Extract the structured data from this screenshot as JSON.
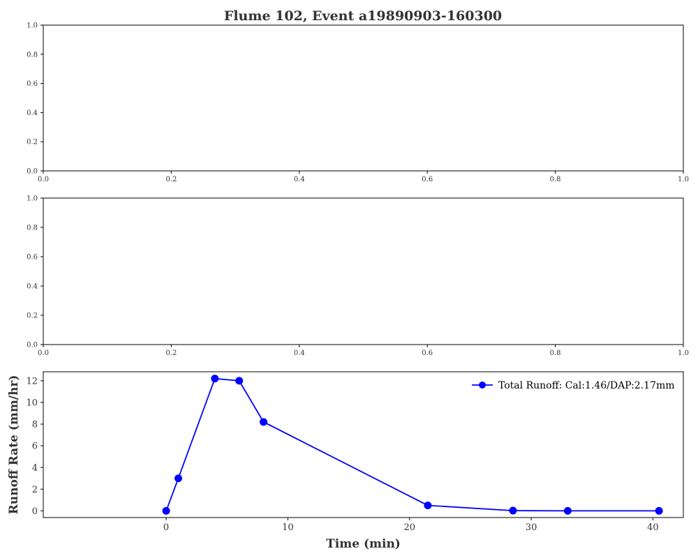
{
  "title": "Flume 102, Event a19890903-160300",
  "chart_data": [
    {
      "type": "line",
      "title": "",
      "xlabel": "",
      "ylabel": "",
      "xlim": [
        0,
        1
      ],
      "ylim": [
        0,
        1
      ],
      "xticks": [
        "0.0",
        "0.2",
        "0.4",
        "0.6",
        "0.8",
        "1.0"
      ],
      "yticks": [
        "0.0",
        "0.2",
        "0.4",
        "0.6",
        "0.8",
        "1.0"
      ],
      "series": []
    },
    {
      "type": "line",
      "title": "",
      "xlabel": "",
      "ylabel": "",
      "xlim": [
        0,
        1
      ],
      "ylim": [
        0,
        1
      ],
      "xticks": [
        "0.0",
        "0.2",
        "0.4",
        "0.6",
        "0.8",
        "1.0"
      ],
      "yticks": [
        "0.0",
        "0.2",
        "0.4",
        "0.6",
        "0.8",
        "1.0"
      ],
      "series": []
    },
    {
      "type": "line",
      "title": "",
      "xlabel": "Time (min)",
      "ylabel": "Runoff Rate (mm/hr)",
      "xlim": [
        -10.1,
        42.5
      ],
      "ylim": [
        -0.62,
        12.83
      ],
      "xticks": [
        "0",
        "10",
        "20",
        "30",
        "40"
      ],
      "yticks": [
        "0",
        "2",
        "4",
        "6",
        "8",
        "10",
        "12"
      ],
      "grid": false,
      "legend": "top-right",
      "series": [
        {
          "name": "Total Runoff: Cal:1.46/DAP:2.17mm",
          "color": "#0000ff",
          "x": [
            0,
            1,
            4,
            6,
            8,
            21.5,
            28.5,
            33,
            40.5
          ],
          "y": [
            0,
            3.0,
            12.2,
            12.0,
            8.2,
            0.5,
            0.02,
            0.0,
            0.0
          ]
        }
      ]
    }
  ]
}
